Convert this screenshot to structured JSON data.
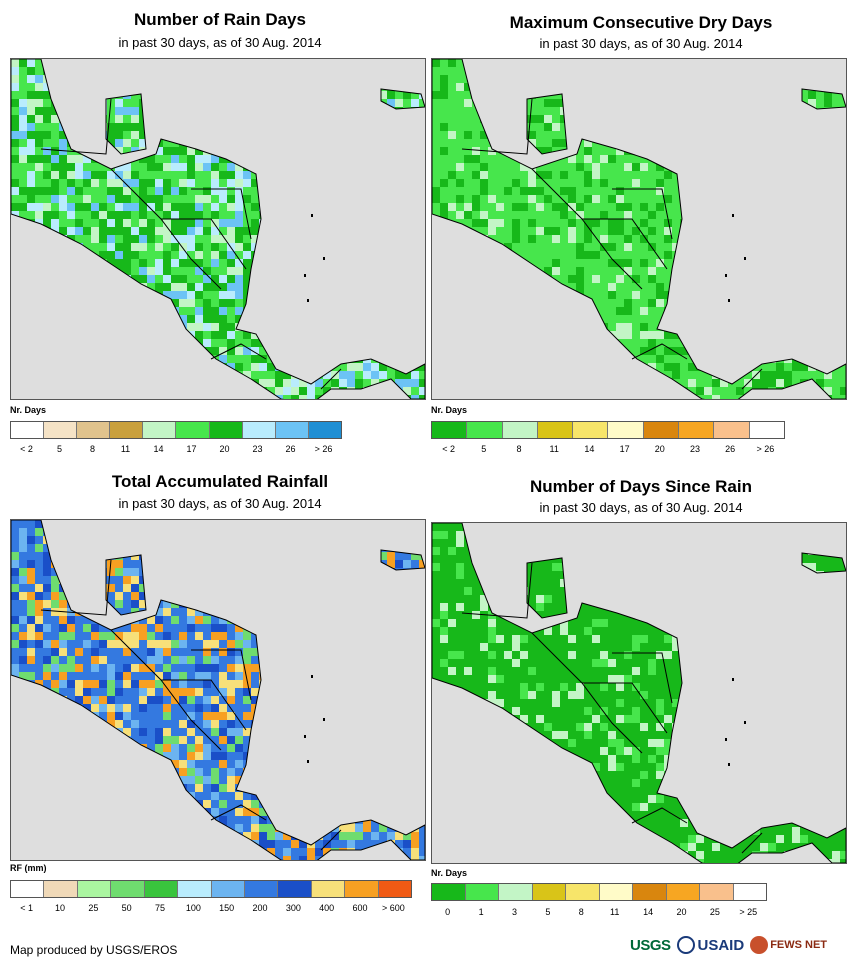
{
  "panels": [
    {
      "title": "Number of Rain Days",
      "subtitle": "in past 30 days, as of 30 Aug. 2014",
      "legend_title": "Nr. Days",
      "legend_colors": [
        "#ffffff",
        "#f5e3c6",
        "#e0c38d",
        "#c9a03d",
        "#c3f5c6",
        "#47e64c",
        "#17b81a",
        "#b9ecfd",
        "#6cc3f5",
        "#1f8fd4"
      ],
      "tick_labels": [
        "< 2",
        "5",
        "8",
        "11",
        "14",
        "17",
        "20",
        "23",
        "26",
        "> 26"
      ],
      "cell_palette": [
        "#17b81a",
        "#17b81a",
        "#47e64c",
        "#47e64c",
        "#b9ecfd",
        "#6cc3f5",
        "#17b81a",
        "#c3f5c6"
      ]
    },
    {
      "title": "Maximum Consecutive Dry Days",
      "subtitle": "in past 30 days, as of 30 Aug. 2014",
      "legend_title": "Nr. Days",
      "legend_colors": [
        "#17b81a",
        "#47e64c",
        "#c3f5c6",
        "#d9c418",
        "#f7e56a",
        "#fffbc8",
        "#d9860e",
        "#f7a622",
        "#f9c08c",
        "#ffffff"
      ],
      "tick_labels": [
        "< 2",
        "5",
        "8",
        "11",
        "14",
        "17",
        "20",
        "23",
        "26",
        "> 26"
      ],
      "cell_palette": [
        "#47e64c",
        "#47e64c",
        "#47e64c",
        "#17b81a",
        "#47e64c",
        "#c3f5c6",
        "#47e64c",
        "#17b81a"
      ]
    },
    {
      "title": "Total Accumulated Rainfall",
      "subtitle": "in past 30 days, as of 30 Aug. 2014",
      "legend_title": "RF (mm)",
      "legend_colors": [
        "#ffffff",
        "#f0d9b8",
        "#aaf5a0",
        "#6fdc6f",
        "#39c43d",
        "#b9ecfd",
        "#6cb4f0",
        "#3479e0",
        "#1a4fc8",
        "#f7e07a",
        "#f7a022",
        "#f05a14"
      ],
      "tick_labels": [
        "< 1",
        "10",
        "25",
        "50",
        "75",
        "100",
        "150",
        "200",
        "300",
        "400",
        "600",
        "> 600"
      ],
      "cell_palette": [
        "#3479e0",
        "#3479e0",
        "#1a4fc8",
        "#6cb4f0",
        "#f7a022",
        "#f7e07a",
        "#3479e0",
        "#6fdc6f"
      ]
    },
    {
      "title": "Number of Days Since Rain",
      "subtitle": "in past 30 days, as of 30 Aug. 2014",
      "legend_title": "Nr. Days",
      "legend_colors": [
        "#17b81a",
        "#47e64c",
        "#c3f5c6",
        "#d9c418",
        "#f7e56a",
        "#fffbc8",
        "#d9860e",
        "#f7a622",
        "#f9c08c",
        "#ffffff"
      ],
      "tick_labels": [
        "0",
        "1",
        "3",
        "5",
        "8",
        "11",
        "14",
        "20",
        "25",
        "> 25"
      ],
      "cell_palette": [
        "#17b81a",
        "#17b81a",
        "#17b81a",
        "#17b81a",
        "#47e64c",
        "#17b81a",
        "#17b81a",
        "#c3f5c6"
      ]
    }
  ],
  "credit": "Map produced by USGS/EROS",
  "logos": {
    "usgs": "USGS",
    "usaid": "USAID",
    "fews": "FEWS NET"
  }
}
